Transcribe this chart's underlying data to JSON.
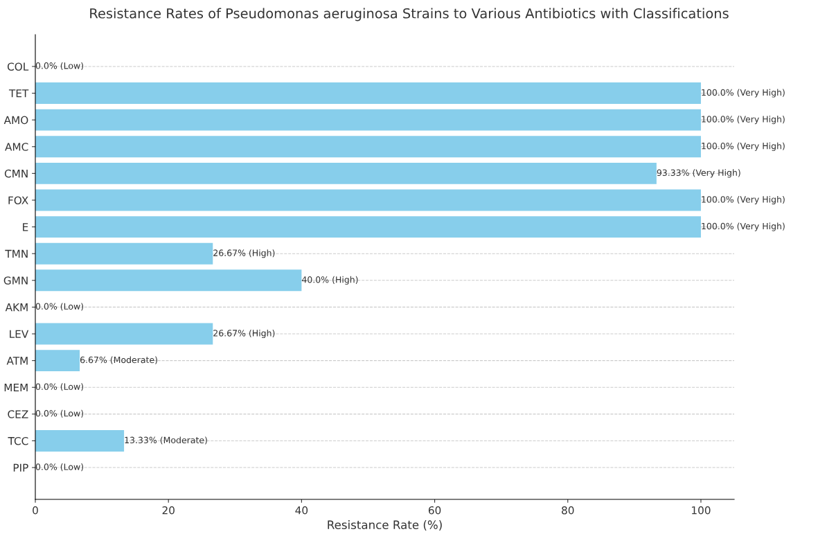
{
  "chart_data": {
    "type": "bar",
    "orientation": "horizontal",
    "title": "Resistance Rates of Pseudomonas aeruginosa Strains to Various Antibiotics with Classifications",
    "xlabel": "Resistance Rate (%)",
    "categories": [
      "COL",
      "TET",
      "AMO",
      "AMC",
      "CMN",
      "FOX",
      "E",
      "TMN",
      "GMN",
      "AKM",
      "LEV",
      "ATM",
      "MEM",
      "CEZ",
      "TCC",
      "PIP"
    ],
    "values": [
      0.0,
      100.0,
      100.0,
      100.0,
      93.33,
      100.0,
      100.0,
      26.67,
      40.0,
      0.0,
      26.67,
      6.67,
      0.0,
      0.0,
      13.33,
      0.0
    ],
    "value_labels": [
      "0.0% (Low)",
      "100.0% (Very High)",
      "100.0% (Very High)",
      "100.0% (Very High)",
      "93.33% (Very High)",
      "100.0% (Very High)",
      "100.0% (Very High)",
      "26.67% (High)",
      "40.0% (High)",
      "0.0% (Low)",
      "26.67% (High)",
      "6.67% (Moderate)",
      "0.0% (Low)",
      "0.0% (Low)",
      "13.33% (Moderate)",
      "0.0% (Low)"
    ],
    "color": "#87ceeb",
    "xlim": [
      0,
      105
    ],
    "xticks": [
      0,
      20,
      40,
      60,
      80,
      100
    ],
    "grid": "y"
  }
}
